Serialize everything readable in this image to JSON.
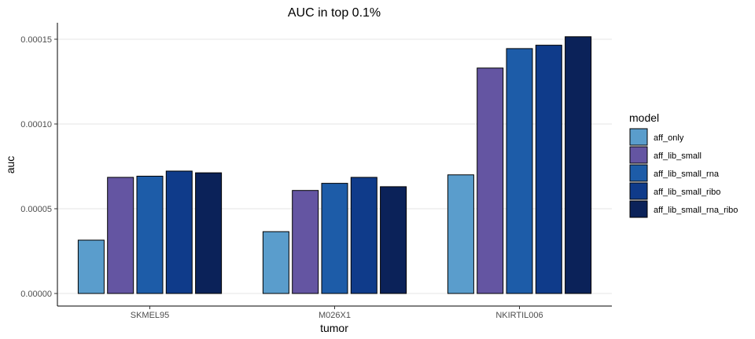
{
  "chart_data": {
    "type": "bar",
    "title": "AUC in top 0.1%",
    "xlabel": "tumor",
    "ylabel": "auc",
    "categories": [
      "SKMEL95",
      "M026X1",
      "NKIRTIL006"
    ],
    "ylim": [
      0,
      0.000152
    ],
    "yticks": [
      0,
      5e-05,
      0.0001,
      0.00015
    ],
    "ytick_labels": [
      "0.00000",
      "0.00005",
      "0.00010",
      "0.00015"
    ],
    "grid": "horizontal major",
    "legend": {
      "title": "model",
      "position": "right"
    },
    "series": [
      {
        "name": "aff_only",
        "color": "#5a9dcc",
        "values": [
          3.15e-05,
          3.65e-05,
          7e-05
        ]
      },
      {
        "name": "aff_lib_small",
        "color": "#6455a2",
        "values": [
          6.85e-05,
          6.08e-05,
          0.000133
        ]
      },
      {
        "name": "aff_lib_small_rna",
        "color": "#1d5ca8",
        "values": [
          6.92e-05,
          6.5e-05,
          0.0001445
        ]
      },
      {
        "name": "aff_lib_small_ribo",
        "color": "#0f3b8a",
        "values": [
          7.22e-05,
          6.85e-05,
          0.0001465
        ]
      },
      {
        "name": "aff_lib_small_rna_ribo",
        "color": "#0b2259",
        "values": [
          7.12e-05,
          6.3e-05,
          0.0001515
        ]
      }
    ]
  }
}
